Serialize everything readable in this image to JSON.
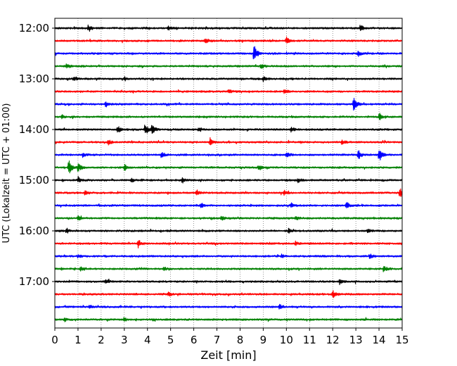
{
  "chart_data": {
    "type": "line",
    "title": "",
    "xlabel": "Zeit  [min]",
    "ylabel": "UTC (Lokalzeit = UTC + 01:00)",
    "xlim": [
      0,
      15
    ],
    "x_ticks": [
      "0",
      "1",
      "2",
      "3",
      "4",
      "5",
      "6",
      "7",
      "8",
      "9",
      "10",
      "11",
      "12",
      "13",
      "14",
      "15"
    ],
    "y_ticks": [
      "12:00",
      "13:00",
      "14:00",
      "15:00",
      "16:00",
      "17:00"
    ],
    "grid": "vertical dotted lines at each minute",
    "trace_interval_min": 15,
    "trace_colors": [
      "#000000",
      "#ff0000",
      "#0000ff",
      "#008000"
    ],
    "traces": [
      {
        "start": "12:00",
        "color": "#000000",
        "events": [
          [
            1.45,
            0.5
          ],
          [
            4.9,
            0.3
          ],
          [
            13.2,
            0.6
          ]
        ]
      },
      {
        "start": "12:15",
        "color": "#ff0000",
        "events": [
          [
            6.5,
            0.5
          ],
          [
            10.0,
            0.6
          ]
        ]
      },
      {
        "start": "12:30",
        "color": "#0000ff",
        "events": [
          [
            8.6,
            1.8
          ],
          [
            13.1,
            0.5
          ]
        ]
      },
      {
        "start": "12:45",
        "color": "#008000",
        "events": [
          [
            0.5,
            0.4
          ],
          [
            8.9,
            0.4
          ]
        ]
      },
      {
        "start": "13:00",
        "color": "#000000",
        "events": [
          [
            0.8,
            0.3
          ],
          [
            3.0,
            0.3
          ],
          [
            9.0,
            0.4
          ]
        ]
      },
      {
        "start": "13:15",
        "color": "#ff0000",
        "events": [
          [
            7.5,
            0.3
          ],
          [
            9.9,
            0.3
          ]
        ]
      },
      {
        "start": "13:30",
        "color": "#0000ff",
        "events": [
          [
            2.2,
            0.4
          ],
          [
            12.9,
            1.3
          ]
        ]
      },
      {
        "start": "13:45",
        "color": "#008000",
        "events": [
          [
            0.3,
            0.3
          ],
          [
            14.0,
            0.6
          ]
        ]
      },
      {
        "start": "14:00",
        "color": "#000000",
        "events": [
          [
            2.7,
            0.7
          ],
          [
            3.9,
            1.0
          ],
          [
            4.2,
            0.9
          ],
          [
            6.2,
            0.4
          ],
          [
            10.2,
            0.5
          ]
        ]
      },
      {
        "start": "14:15",
        "color": "#ff0000",
        "events": [
          [
            2.3,
            0.4
          ],
          [
            6.7,
            0.5
          ],
          [
            12.4,
            0.4
          ]
        ]
      },
      {
        "start": "14:30",
        "color": "#0000ff",
        "events": [
          [
            1.2,
            0.4
          ],
          [
            4.6,
            0.5
          ],
          [
            10.0,
            0.6
          ],
          [
            13.1,
            0.8
          ],
          [
            14.0,
            1.2
          ]
        ]
      },
      {
        "start": "14:45",
        "color": "#008000",
        "events": [
          [
            0.6,
            1.2
          ],
          [
            1.0,
            0.9
          ],
          [
            3.0,
            0.5
          ],
          [
            8.8,
            0.4
          ]
        ]
      },
      {
        "start": "15:00",
        "color": "#000000",
        "events": [
          [
            1.0,
            0.5
          ],
          [
            3.3,
            0.3
          ],
          [
            5.5,
            0.4
          ],
          [
            10.5,
            0.3
          ]
        ]
      },
      {
        "start": "15:15",
        "color": "#ff0000",
        "events": [
          [
            1.3,
            0.3
          ],
          [
            6.1,
            0.4
          ],
          [
            9.9,
            0.4
          ],
          [
            14.9,
            0.8
          ]
        ]
      },
      {
        "start": "15:30",
        "color": "#0000ff",
        "events": [
          [
            6.3,
            0.4
          ],
          [
            10.2,
            0.4
          ],
          [
            12.6,
            0.5
          ]
        ]
      },
      {
        "start": "15:45",
        "color": "#008000",
        "events": [
          [
            1.0,
            0.3
          ],
          [
            7.2,
            0.4
          ],
          [
            10.4,
            0.3
          ]
        ]
      },
      {
        "start": "16:00",
        "color": "#000000",
        "events": [
          [
            0.5,
            0.4
          ],
          [
            10.1,
            0.4
          ],
          [
            13.5,
            0.3
          ]
        ]
      },
      {
        "start": "16:15",
        "color": "#ff0000",
        "events": [
          [
            3.6,
            0.6
          ],
          [
            10.4,
            0.3
          ]
        ]
      },
      {
        "start": "16:30",
        "color": "#0000ff",
        "events": [
          [
            1.0,
            0.3
          ],
          [
            9.8,
            0.3
          ],
          [
            13.6,
            0.4
          ]
        ]
      },
      {
        "start": "16:45",
        "color": "#008000",
        "events": [
          [
            1.1,
            0.3
          ],
          [
            4.7,
            0.3
          ],
          [
            14.2,
            0.5
          ]
        ]
      },
      {
        "start": "17:00",
        "color": "#000000",
        "events": [
          [
            2.2,
            0.4
          ],
          [
            12.3,
            0.4
          ]
        ]
      },
      {
        "start": "17:15",
        "color": "#ff0000",
        "events": [
          [
            4.9,
            0.4
          ],
          [
            12.0,
            0.6
          ]
        ]
      },
      {
        "start": "17:30",
        "color": "#0000ff",
        "events": [
          [
            1.5,
            0.3
          ],
          [
            9.7,
            0.4
          ]
        ]
      },
      {
        "start": "17:45",
        "color": "#008000",
        "events": [
          [
            0.4,
            0.3
          ],
          [
            3.0,
            0.3
          ]
        ]
      }
    ]
  }
}
